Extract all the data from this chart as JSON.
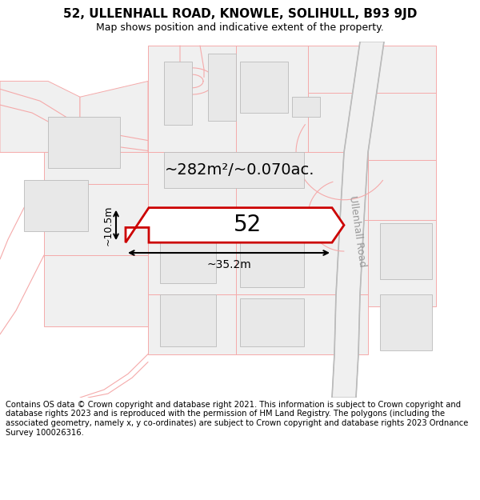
{
  "title": "52, ULLENHALL ROAD, KNOWLE, SOLIHULL, B93 9JD",
  "subtitle": "Map shows position and indicative extent of the property.",
  "footer": "Contains OS data © Crown copyright and database right 2021. This information is subject to Crown copyright and database rights 2023 and is reproduced with the permission of HM Land Registry. The polygons (including the associated geometry, namely x, y co-ordinates) are subject to Crown copyright and database rights 2023 Ordnance Survey 100026316.",
  "area_label": "~282m²/~0.070ac.",
  "number_label": "52",
  "width_label": "~35.2m",
  "height_label": "~10.5m",
  "road_label": "Ullenhall Road",
  "highlight_color": "#cc0000",
  "road_color": "#f5aaaa",
  "road_color2": "#e89090",
  "building_fill": "#e8e8e8",
  "building_edge": "#bbbbbb",
  "parcel_fill": "#f0f0f0",
  "parcel_edge": "#e0a0a0",
  "road_grey": "#bbbbbb",
  "bg_color": "#ffffff",
  "title_fontsize": 11,
  "subtitle_fontsize": 9,
  "footer_fontsize": 7.2,
  "area_fontsize": 14,
  "number_fontsize": 20,
  "dim_fontsize": 10,
  "road_label_fontsize": 9
}
